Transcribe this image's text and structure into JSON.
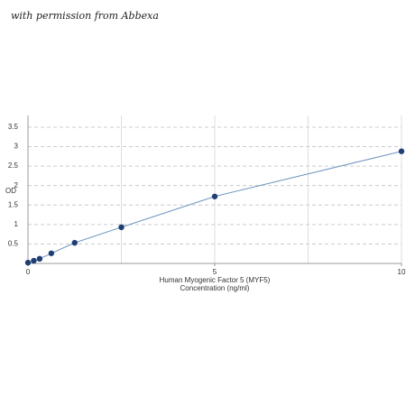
{
  "chart_data": {
    "type": "line",
    "watermark": "with permission from Abbexa",
    "xlabel": [
      "Human Myogenic Factor 5 (MYF5)",
      "Concentration (ng/ml)"
    ],
    "ylabel": "OD",
    "x": [
      0,
      0.156,
      0.312,
      0.625,
      1.25,
      2.5,
      5,
      10
    ],
    "series": [
      {
        "color": "#1f3f73",
        "line_color": "#6f94bf",
        "values": [
          0.02,
          0.07,
          0.12,
          0.26,
          0.53,
          0.93,
          1.72,
          2.88
        ]
      }
    ],
    "xlim": [
      0,
      10
    ],
    "xticks": [
      0,
      5,
      10
    ],
    "xgrid": [
      2.5,
      5,
      7.5,
      10
    ],
    "ylim": [
      0,
      3.8
    ],
    "yticks": [
      0.5,
      1,
      1.5,
      2,
      2.5,
      3,
      3.5
    ],
    "grid": true
  }
}
